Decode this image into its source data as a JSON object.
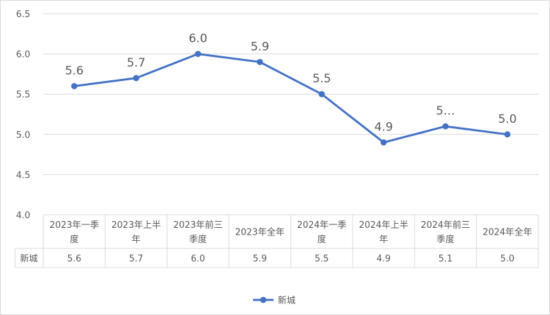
{
  "chart_data": {
    "type": "line",
    "categories": [
      [
        "2023年一季",
        "度"
      ],
      [
        "2023年上半",
        "年"
      ],
      [
        "2023年前三",
        "季度"
      ],
      [
        "2023年全年"
      ],
      [
        "2024年一季",
        "度"
      ],
      [
        "2024年上半",
        "年"
      ],
      [
        "2024年前三",
        "季度"
      ],
      [
        "2024年全年"
      ]
    ],
    "series": [
      {
        "name": "新城",
        "values": [
          5.6,
          5.7,
          6.0,
          5.9,
          5.5,
          4.9,
          5.1,
          5.0
        ],
        "data_labels": [
          "5.6",
          "5.7",
          "6.0",
          "5.9",
          "5.5",
          "4.9",
          "5…",
          "5.0"
        ],
        "table_values": [
          "5.6",
          "5.7",
          "6.0",
          "5.9",
          "5.5",
          "4.9",
          "5.1",
          "5.0"
        ],
        "color": "#4472C4"
      }
    ],
    "yticks": [
      "4.0",
      "4.5",
      "5.0",
      "5.5",
      "6.0",
      "6.5"
    ],
    "ylim": [
      4.0,
      6.5
    ],
    "grid": true,
    "data_table": true,
    "legend": "bottom-center"
  }
}
